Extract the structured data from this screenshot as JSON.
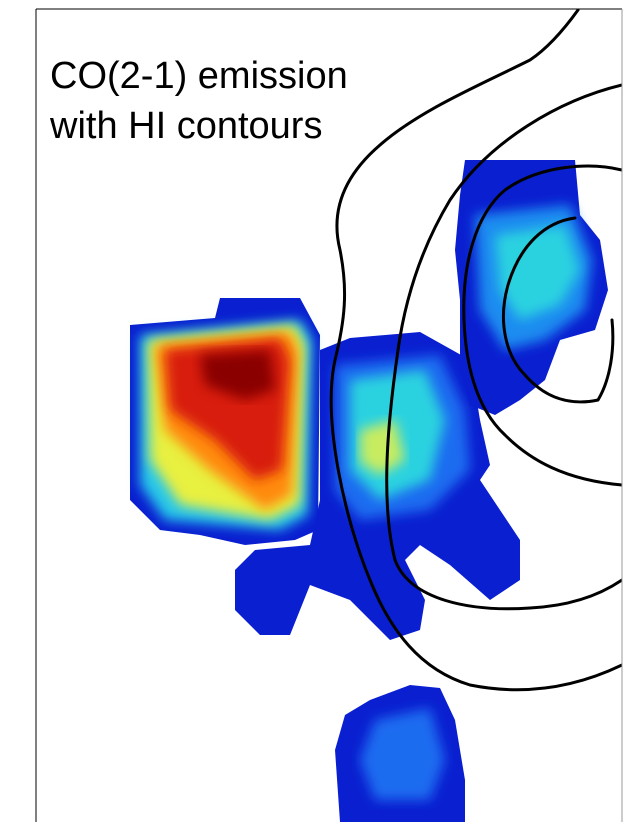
{
  "title": {
    "lines": [
      "CO(2-1) emission",
      "with HI contours"
    ]
  }
}
